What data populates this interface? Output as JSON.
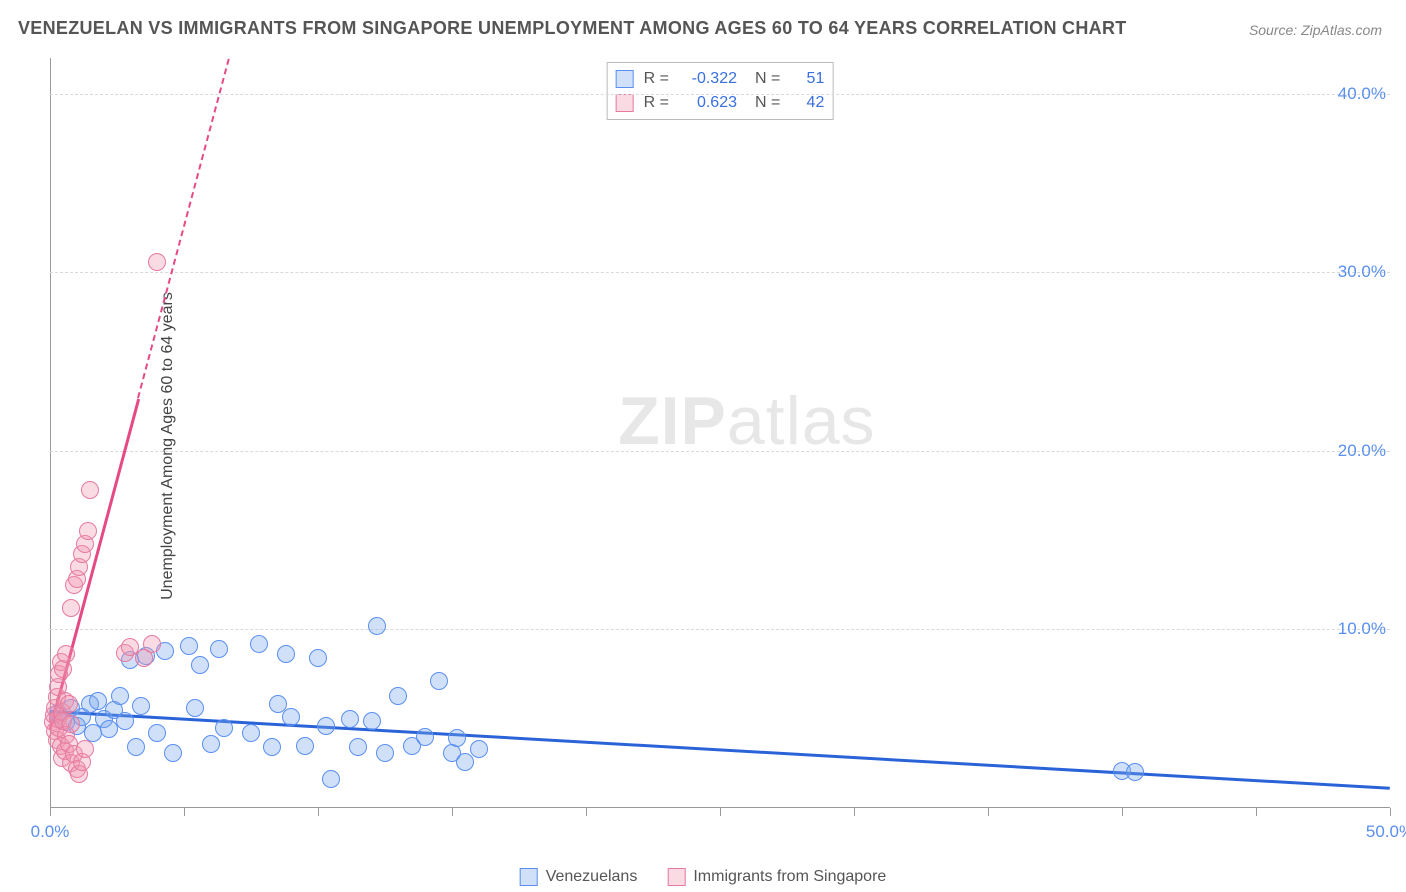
{
  "title": "VENEZUELAN VS IMMIGRANTS FROM SINGAPORE UNEMPLOYMENT AMONG AGES 60 TO 64 YEARS CORRELATION CHART",
  "source": "Source: ZipAtlas.com",
  "ylabel": "Unemployment Among Ages 60 to 64 years",
  "watermark_bold": "ZIP",
  "watermark_rest": "atlas",
  "chart": {
    "type": "scatter",
    "xlim": [
      0,
      50
    ],
    "ylim": [
      0,
      42
    ],
    "xticks": [
      0,
      5,
      10,
      15,
      20,
      25,
      30,
      35,
      40,
      45,
      50
    ],
    "xtick_labels": {
      "0": "0.0%",
      "50": "50.0%"
    },
    "yticks": [
      10,
      20,
      30,
      40
    ],
    "ytick_labels": {
      "10": "10.0%",
      "20": "20.0%",
      "30": "30.0%",
      "40": "40.0%"
    },
    "background_color": "#ffffff",
    "grid_color": "#d9d9d9",
    "axis_color": "#999999",
    "tick_label_color": "#5a8ff0",
    "series": [
      {
        "name": "Venezuelans",
        "color_fill": "rgba(120,165,235,0.35)",
        "color_stroke": "#5a8ff0",
        "marker_radius": 9,
        "R": "-0.322",
        "N": "51",
        "trend": {
          "x1": 0,
          "y1": 5.5,
          "x2": 50,
          "y2": 1.2,
          "color": "#2a63d8",
          "width": 2.5
        },
        "points": [
          [
            0.3,
            5.3
          ],
          [
            0.6,
            4.8
          ],
          [
            0.8,
            5.6
          ],
          [
            1.0,
            4.6
          ],
          [
            1.2,
            5.1
          ],
          [
            1.5,
            5.8
          ],
          [
            1.6,
            4.2
          ],
          [
            1.8,
            6.0
          ],
          [
            2.0,
            5.0
          ],
          [
            2.2,
            4.4
          ],
          [
            2.4,
            5.5
          ],
          [
            2.6,
            6.3
          ],
          [
            2.8,
            4.9
          ],
          [
            3.0,
            8.3
          ],
          [
            3.2,
            3.4
          ],
          [
            3.4,
            5.7
          ],
          [
            3.6,
            8.5
          ],
          [
            4.0,
            4.2
          ],
          [
            4.3,
            8.8
          ],
          [
            4.6,
            3.1
          ],
          [
            5.2,
            9.1
          ],
          [
            5.4,
            5.6
          ],
          [
            5.6,
            8.0
          ],
          [
            6.0,
            3.6
          ],
          [
            6.3,
            8.9
          ],
          [
            6.5,
            4.5
          ],
          [
            7.5,
            4.2
          ],
          [
            7.8,
            9.2
          ],
          [
            8.3,
            3.4
          ],
          [
            8.5,
            5.8
          ],
          [
            8.8,
            8.6
          ],
          [
            9.0,
            5.1
          ],
          [
            9.5,
            3.5
          ],
          [
            10.0,
            8.4
          ],
          [
            10.3,
            4.6
          ],
          [
            10.5,
            1.6
          ],
          [
            11.2,
            5.0
          ],
          [
            11.5,
            3.4
          ],
          [
            12.0,
            4.9
          ],
          [
            12.2,
            10.2
          ],
          [
            12.5,
            3.1
          ],
          [
            13.0,
            6.3
          ],
          [
            13.5,
            3.5
          ],
          [
            14.0,
            4.0
          ],
          [
            14.5,
            7.1
          ],
          [
            15.0,
            3.1
          ],
          [
            15.2,
            3.9
          ],
          [
            15.5,
            2.6
          ],
          [
            16.0,
            3.3
          ],
          [
            40.0,
            2.1
          ],
          [
            40.5,
            2.0
          ]
        ]
      },
      {
        "name": "Immigrants from Singapore",
        "color_fill": "rgba(240,150,175,0.35)",
        "color_stroke": "#e67aa0",
        "marker_radius": 9,
        "R": "0.623",
        "N": "42",
        "trend": {
          "x1": 0,
          "y1": 4.5,
          "x2": 3.3,
          "y2": 23.0,
          "color": "#e64a85",
          "width": 2.5,
          "extend_to_y": 42
        },
        "points": [
          [
            0.1,
            4.8
          ],
          [
            0.15,
            5.2
          ],
          [
            0.2,
            4.3
          ],
          [
            0.2,
            5.6
          ],
          [
            0.25,
            6.2
          ],
          [
            0.25,
            3.8
          ],
          [
            0.3,
            5.0
          ],
          [
            0.3,
            6.8
          ],
          [
            0.35,
            4.5
          ],
          [
            0.35,
            7.5
          ],
          [
            0.4,
            3.5
          ],
          [
            0.4,
            8.2
          ],
          [
            0.45,
            5.4
          ],
          [
            0.45,
            2.8
          ],
          [
            0.5,
            4.9
          ],
          [
            0.5,
            7.8
          ],
          [
            0.55,
            3.2
          ],
          [
            0.55,
            6.0
          ],
          [
            0.6,
            4.1
          ],
          [
            0.6,
            8.6
          ],
          [
            0.7,
            3.6
          ],
          [
            0.7,
            5.8
          ],
          [
            0.8,
            2.5
          ],
          [
            0.8,
            4.7
          ],
          [
            0.8,
            11.2
          ],
          [
            0.9,
            3.0
          ],
          [
            0.9,
            12.5
          ],
          [
            1.0,
            2.2
          ],
          [
            1.0,
            12.8
          ],
          [
            1.1,
            1.9
          ],
          [
            1.1,
            13.5
          ],
          [
            1.2,
            14.2
          ],
          [
            1.2,
            2.6
          ],
          [
            1.3,
            14.8
          ],
          [
            1.3,
            3.3
          ],
          [
            1.4,
            15.5
          ],
          [
            1.5,
            17.8
          ],
          [
            2.8,
            8.7
          ],
          [
            3.0,
            9.0
          ],
          [
            3.5,
            8.4
          ],
          [
            3.8,
            9.2
          ],
          [
            4.0,
            30.6
          ]
        ]
      }
    ],
    "stats_box": {
      "rows": [
        {
          "swatch_fill": "rgba(120,165,235,0.35)",
          "swatch_stroke": "#5a8ff0",
          "R_label": "R =",
          "R": "-0.322",
          "N_label": "N =",
          "N": "51"
        },
        {
          "swatch_fill": "rgba(240,150,175,0.35)",
          "swatch_stroke": "#e67aa0",
          "R_label": "R =",
          "R": "0.623",
          "N_label": "N =",
          "N": "42"
        }
      ]
    },
    "legend_bottom": [
      {
        "swatch_fill": "rgba(120,165,235,0.35)",
        "swatch_stroke": "#5a8ff0",
        "label": "Venezuelans"
      },
      {
        "swatch_fill": "rgba(240,150,175,0.35)",
        "swatch_stroke": "#e67aa0",
        "label": "Immigrants from Singapore"
      }
    ]
  }
}
